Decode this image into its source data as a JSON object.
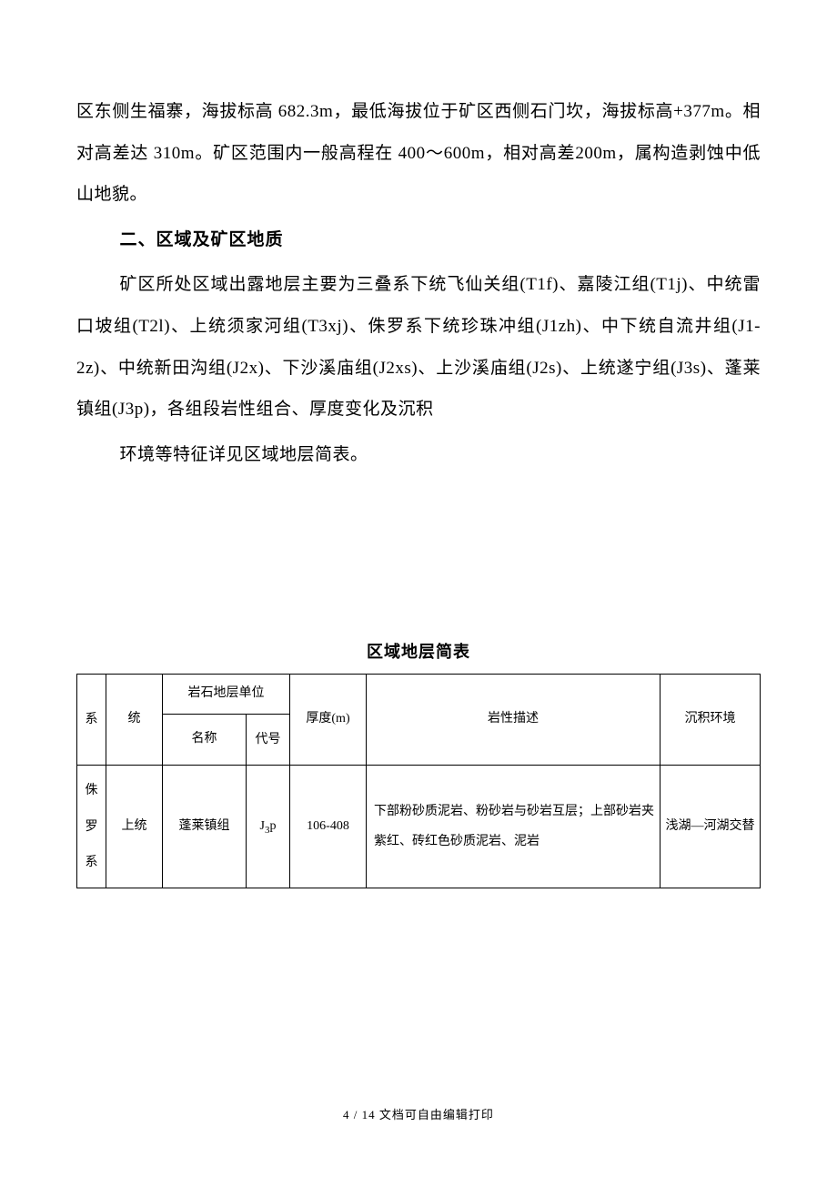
{
  "paragraphs": {
    "p1": "区东侧生福寨，海拔标高 682.3m，最低海拔位于矿区西侧石门坎，海拔标高+377m。相对高差达 310m。矿区范围内一般高程在 400～600m，相对高差200m，属构造剥蚀中低山地貌。",
    "heading1": "二、区域及矿区地质",
    "p2": "矿区所处区域出露地层主要为三叠系下统飞仙关组(T1f)、嘉陵江组(T1j)、中统雷口坡组(T2l)、上统须家河组(T3xj)、侏罗系下统珍珠冲组(J1zh)、中下统自流井组(J1-2z)、中统新田沟组(J2x)、下沙溪庙组(J2xs)、上沙溪庙组(J2s)、上统遂宁组(J3s)、蓬莱镇组(J3p)，各组段岩性组合、厚度变化及沉积",
    "p3": "环境等特征详见区域地层简表。"
  },
  "table": {
    "title": "区域地层简表",
    "headers": {
      "system": "系",
      "series": "统",
      "rock_unit": "岩石地层单位",
      "name": "名称",
      "code": "代号",
      "thickness": "厚度(m)",
      "lithology": "岩性描述",
      "environment": "沉积环境"
    },
    "rows": [
      {
        "system_chars": [
          "侏",
          "罗",
          "系"
        ],
        "series": "上统",
        "name": "蓬莱镇组",
        "code_main": "J",
        "code_sub": "3",
        "code_suffix": "p",
        "thickness": "106-408",
        "lithology": "下部粉砂质泥岩、粉砂岩与砂岩互层；上部砂岩夹紫红、砖红色砂质泥岩、泥岩",
        "environment": "浅湖—河湖交替"
      }
    ]
  },
  "footer": {
    "page_current": "4",
    "page_total": "14",
    "note": "文档可自由编辑打印"
  },
  "colors": {
    "text": "#000000",
    "background": "#ffffff",
    "border": "#000000"
  }
}
